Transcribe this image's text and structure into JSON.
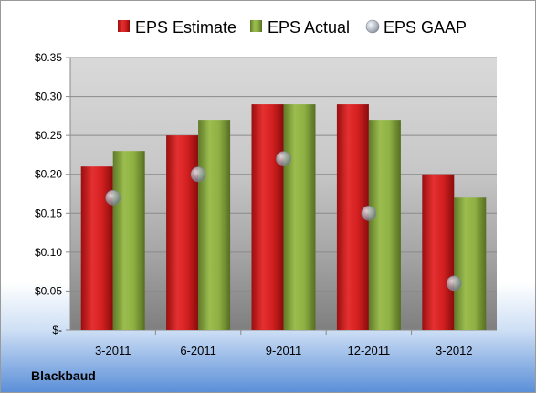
{
  "company": "Blackbaud",
  "colors": {
    "estimate": "#d42020",
    "actual": "#8fb043",
    "gaap": "#b0b8c4"
  },
  "chart_data": {
    "type": "bar",
    "categories": [
      "3-2011",
      "6-2011",
      "9-2011",
      "12-2011",
      "3-2012"
    ],
    "series": [
      {
        "name": "EPS Estimate",
        "kind": "bar",
        "values": [
          0.21,
          0.25,
          0.29,
          0.29,
          0.2
        ]
      },
      {
        "name": "EPS Actual",
        "kind": "bar",
        "values": [
          0.23,
          0.27,
          0.29,
          0.27,
          0.17
        ]
      },
      {
        "name": "EPS GAAP",
        "kind": "marker",
        "values": [
          0.17,
          0.2,
          0.22,
          0.15,
          0.06
        ]
      }
    ],
    "ylim": [
      0,
      0.35
    ],
    "yticks": [
      "$-",
      "$0.05",
      "$0.10",
      "$0.15",
      "$0.20",
      "$0.25",
      "$0.30",
      "$0.35"
    ],
    "legend": "top",
    "grid": true
  }
}
